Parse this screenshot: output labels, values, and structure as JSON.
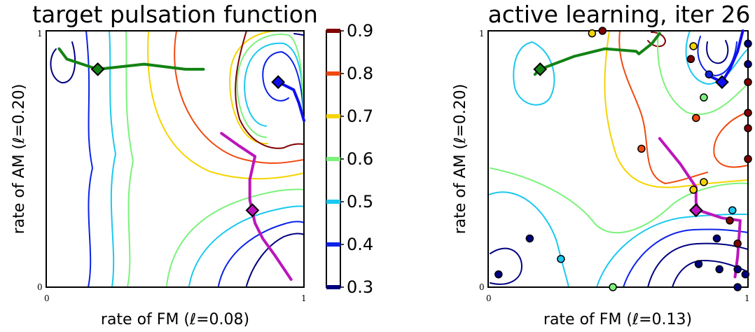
{
  "chart_data": [
    {
      "type": "contour",
      "title": "target pulsation function",
      "xlabel": "rate of FM (ℓ=0.08)",
      "ylabel": "rate of AM (ℓ=0.20)",
      "xlim": [
        0,
        1
      ],
      "ylim": [
        0,
        1
      ],
      "x_ticks": [
        "0",
        "1"
      ],
      "y_ticks": [
        "0",
        "1"
      ],
      "trajectories": [
        {
          "color": "#138213",
          "marker": [
            0.2,
            0.85
          ],
          "points": [
            [
              0.05,
              0.93
            ],
            [
              0.08,
              0.89
            ],
            [
              0.2,
              0.85
            ],
            [
              0.38,
              0.87
            ],
            [
              0.54,
              0.85
            ],
            [
              0.61,
              0.85
            ]
          ]
        },
        {
          "color": "#1010ee",
          "marker": [
            0.9,
            0.8
          ],
          "points": [
            [
              0.9,
              0.8
            ],
            [
              0.96,
              0.77
            ],
            [
              0.98,
              0.72
            ],
            [
              1.0,
              0.65
            ]
          ]
        },
        {
          "color": "#bb15bb",
          "marker": [
            0.8,
            0.3
          ],
          "points": [
            [
              0.68,
              0.6
            ],
            [
              0.75,
              0.55
            ],
            [
              0.81,
              0.51
            ],
            [
              0.79,
              0.42
            ],
            [
              0.79,
              0.34
            ],
            [
              0.81,
              0.25
            ],
            [
              0.84,
              0.19
            ],
            [
              0.89,
              0.12
            ],
            [
              0.95,
              0.03
            ]
          ]
        }
      ]
    },
    {
      "type": "contour",
      "title": "active learning, iter 26",
      "xlabel": "rate of FM (ℓ=0.13)",
      "ylabel": "rate of AM (ℓ=0.20)",
      "xlim": [
        0,
        1
      ],
      "ylim": [
        0,
        1
      ],
      "x_ticks": [
        "0",
        "1"
      ],
      "y_ticks": [
        "0",
        "1"
      ],
      "trajectories": [
        {
          "color": "#138213",
          "marker": [
            0.2,
            0.85
          ],
          "points": [
            [
              0.18,
              0.83
            ],
            [
              0.2,
              0.85
            ],
            [
              0.33,
              0.9
            ],
            [
              0.45,
              0.93
            ],
            [
              0.57,
              0.92
            ],
            [
              0.58,
              0.91
            ],
            [
              0.63,
              0.95
            ],
            [
              0.66,
              0.99
            ]
          ]
        },
        {
          "color": "#1010ee",
          "marker": [
            0.9,
            0.8
          ],
          "points": [
            [
              0.84,
              0.83
            ],
            [
              0.9,
              0.8
            ],
            [
              0.93,
              0.85
            ],
            [
              0.96,
              0.92
            ],
            [
              0.98,
              1.0
            ]
          ]
        },
        {
          "color": "#bb15bb",
          "marker": [
            0.8,
            0.3
          ],
          "points": [
            [
              0.66,
              0.58
            ],
            [
              0.74,
              0.48
            ],
            [
              0.8,
              0.39
            ],
            [
              0.8,
              0.33
            ],
            [
              0.81,
              0.3
            ],
            [
              0.9,
              0.27
            ],
            [
              0.97,
              0.26
            ],
            [
              0.96,
              0.12
            ],
            [
              0.95,
              0.04
            ]
          ]
        }
      ],
      "samples": [
        {
          "x": 0.4,
          "y": 0.99,
          "level": 0.7
        },
        {
          "x": 0.44,
          "y": 1.0,
          "level": 0.9
        },
        {
          "x": 0.79,
          "y": 0.94,
          "level": 0.7
        },
        {
          "x": 0.78,
          "y": 0.89,
          "level": 0.9
        },
        {
          "x": 0.85,
          "y": 0.83,
          "level": 0.4
        },
        {
          "x": 0.83,
          "y": 0.74,
          "level": 0.6
        },
        {
          "x": 0.8,
          "y": 0.66,
          "level": 0.8
        },
        {
          "x": 0.59,
          "y": 0.54,
          "level": 0.8
        },
        {
          "x": 0.83,
          "y": 0.41,
          "level": 0.7
        },
        {
          "x": 0.79,
          "y": 0.38,
          "level": 0.7
        },
        {
          "x": 0.94,
          "y": 0.3,
          "level": 0.5
        },
        {
          "x": 0.93,
          "y": 0.26,
          "level": 0.9
        },
        {
          "x": 0.16,
          "y": 0.19,
          "level": 0.3
        },
        {
          "x": 0.28,
          "y": 0.11,
          "level": 0.5
        },
        {
          "x": 0.04,
          "y": 0.05,
          "level": 0.3
        },
        {
          "x": 0.48,
          "y": 0.0,
          "level": 0.6
        },
        {
          "x": 0.88,
          "y": 0.19,
          "level": 0.3
        },
        {
          "x": 0.96,
          "y": 0.17,
          "level": 0.9
        },
        {
          "x": 0.81,
          "y": 0.09,
          "level": 0.3
        },
        {
          "x": 0.89,
          "y": 0.07,
          "level": 0.3
        },
        {
          "x": 0.96,
          "y": 0.07,
          "level": 0.3
        },
        {
          "x": 0.99,
          "y": 0.05,
          "level": 0.3
        },
        {
          "x": 0.96,
          "y": 0.0,
          "level": 0.3
        },
        {
          "x": 1.0,
          "y": 0.95,
          "level": 0.3
        },
        {
          "x": 1.0,
          "y": 0.87,
          "level": 0.3
        },
        {
          "x": 1.0,
          "y": 0.8,
          "level": 0.9
        },
        {
          "x": 1.0,
          "y": 0.68,
          "level": 0.9
        },
        {
          "x": 1.0,
          "y": 0.62,
          "level": 0.9
        },
        {
          "x": 1.0,
          "y": 0.5,
          "level": 0.9
        }
      ]
    }
  ],
  "colorbar": {
    "ticks": [
      "0.3",
      "0.4",
      "0.5",
      "0.6",
      "0.7",
      "0.8",
      "0.9"
    ],
    "levels": [
      0.3,
      0.4,
      0.5,
      0.6,
      0.7,
      0.8,
      0.9
    ],
    "colors": {
      "0.3": "#000080",
      "0.4": "#0b22e8",
      "0.5": "#1bc8ee",
      "0.6": "#7bf27b",
      "0.7": "#f5d400",
      "0.8": "#f04a10",
      "0.9": "#800000"
    }
  }
}
